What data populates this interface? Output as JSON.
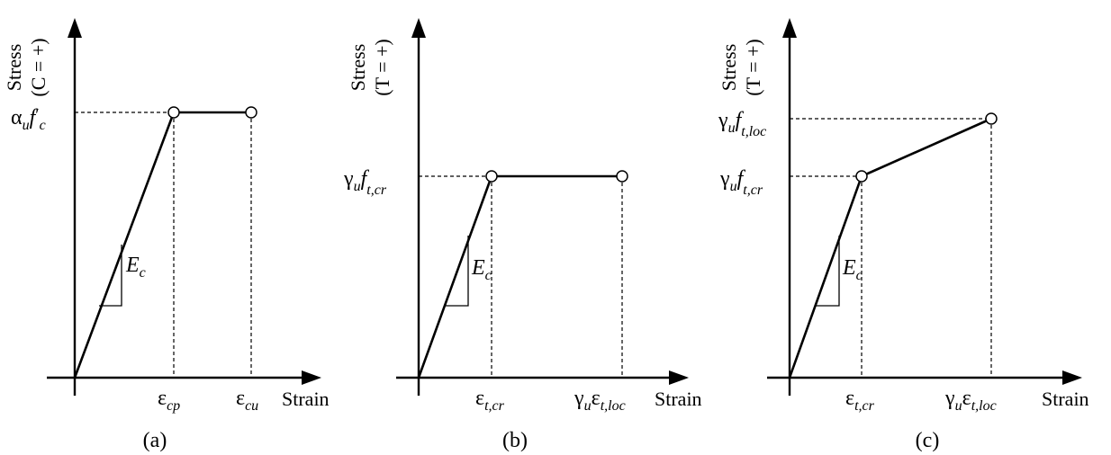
{
  "panels": [
    {
      "id": "a",
      "caption": "(a)",
      "y_axis_title": "Stress",
      "y_axis_sign": "(C = +)",
      "x_axis_title": "Strain",
      "slope_label": "E",
      "slope_label_sub": "c",
      "y_labels": [
        {
          "greek": "α",
          "sub": "u",
          "main": "f",
          "prime": "′",
          "main_sub": "c"
        }
      ],
      "x_labels": [
        {
          "pre": "",
          "pre_sub": "",
          "greek": "ε",
          "sub": "cp"
        },
        {
          "pre": "",
          "pre_sub": "",
          "greek": "ε",
          "sub": "cu"
        }
      ]
    },
    {
      "id": "b",
      "caption": "(b)",
      "y_axis_title": "Stress",
      "y_axis_sign": "(T = +)",
      "x_axis_title": "Strain",
      "slope_label": "E",
      "slope_label_sub": "c",
      "y_labels": [
        {
          "greek": "γ",
          "sub": "u",
          "main": "f",
          "prime": "",
          "main_sub": "t,cr"
        }
      ],
      "x_labels": [
        {
          "pre": "",
          "pre_sub": "",
          "greek": "ε",
          "sub": "t,cr"
        },
        {
          "pre": "γ",
          "pre_sub": "u",
          "greek": "ε",
          "sub": "t,loc"
        }
      ]
    },
    {
      "id": "c",
      "caption": "(c)",
      "y_axis_title": "Stress",
      "y_axis_sign": "(T = +)",
      "x_axis_title": "Strain",
      "slope_label": "E",
      "slope_label_sub": "c",
      "y_labels": [
        {
          "greek": "γ",
          "sub": "u",
          "main": "f",
          "prime": "",
          "main_sub": "t,loc"
        },
        {
          "greek": "γ",
          "sub": "u",
          "main": "f",
          "prime": "",
          "main_sub": "t,cr"
        }
      ],
      "x_labels": [
        {
          "pre": "",
          "pre_sub": "",
          "greek": "ε",
          "sub": "t,cr"
        },
        {
          "pre": "γ",
          "pre_sub": "u",
          "greek": "ε",
          "sub": "t,loc"
        }
      ]
    }
  ]
}
